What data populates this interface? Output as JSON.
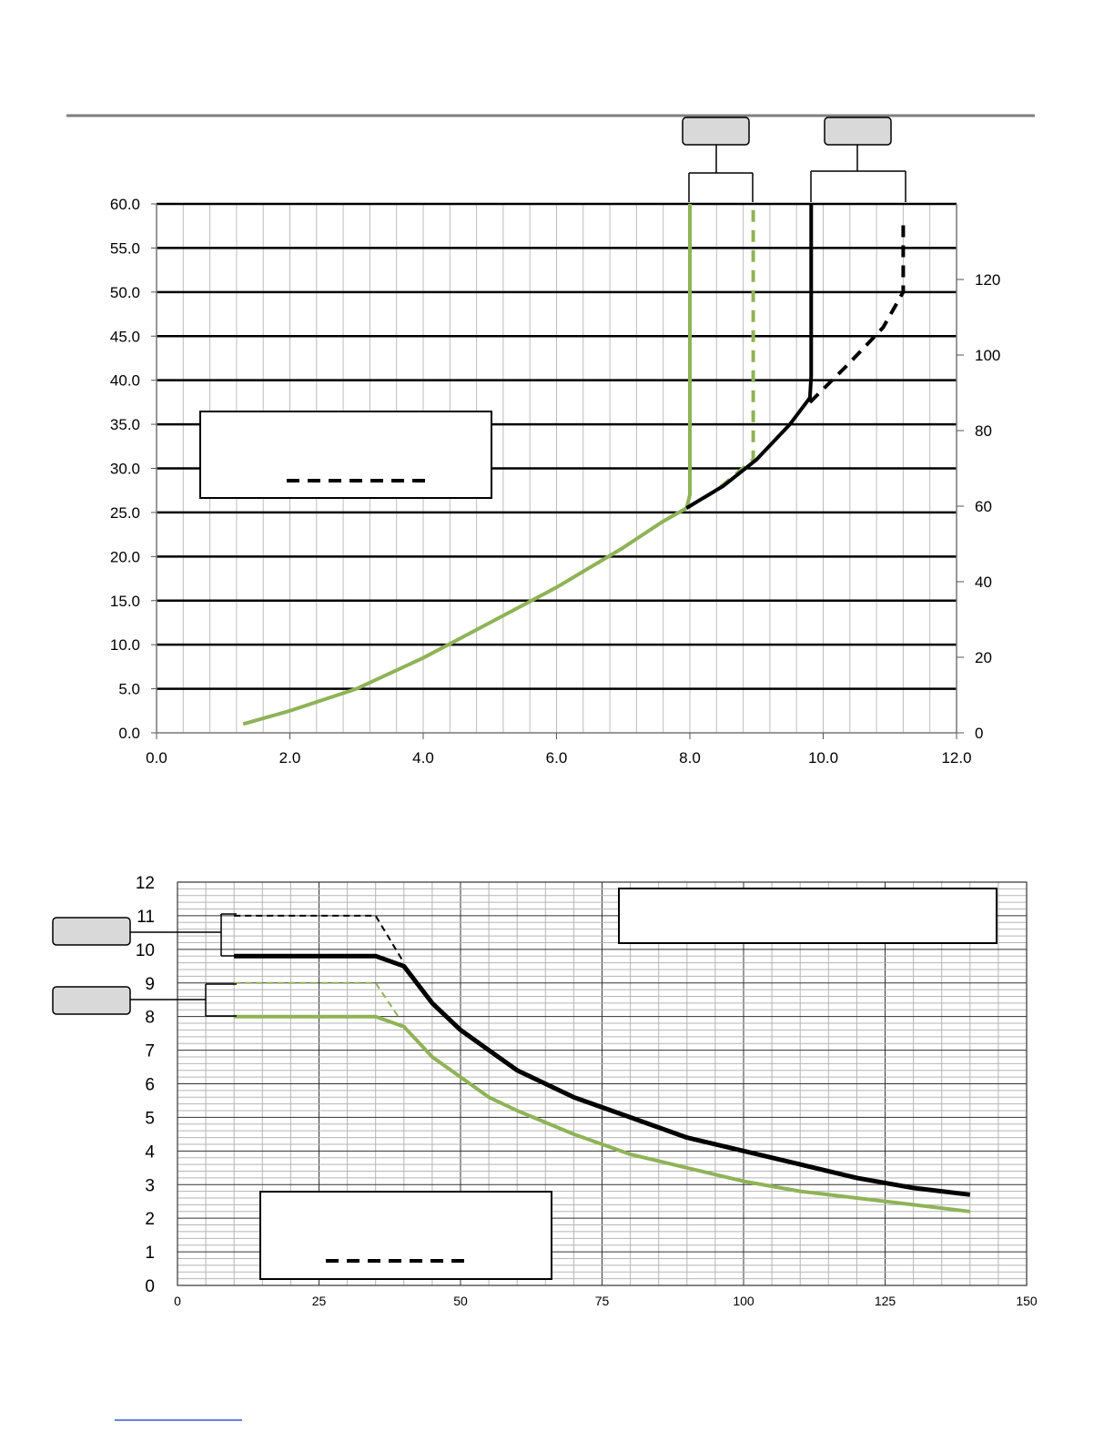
{
  "chart_data": [
    {
      "type": "line",
      "title": "",
      "xlabel": "",
      "ylabel": "",
      "xlim": [
        0,
        12
      ],
      "ylim": [
        0,
        60
      ],
      "y2lim": [
        0,
        140
      ],
      "xticks": [
        "0.0",
        "2.0",
        "4.0",
        "6.0",
        "8.0",
        "10.0",
        "12.0"
      ],
      "yticks": [
        "0.0",
        "5.0",
        "10.0",
        "15.0",
        "20.0",
        "25.0",
        "30.0",
        "35.0",
        "40.0",
        "45.0",
        "50.0",
        "55.0",
        "60.0"
      ],
      "y2ticks": [
        "0",
        "20",
        "40",
        "60",
        "80",
        "100",
        "120"
      ],
      "grid": true,
      "series": [
        {
          "color": "#8fb357",
          "style": "solid",
          "x": [
            1.3,
            2.0,
            3.0,
            4.0,
            5.0,
            6.0,
            7.0,
            7.6,
            7.95,
            8.0,
            8.0
          ],
          "y": [
            1.0,
            2.5,
            5.0,
            8.5,
            12.5,
            16.5,
            21.0,
            24.0,
            25.5,
            27.0,
            60.0
          ]
        },
        {
          "color": "#8fb357",
          "style": "dashed",
          "x": [
            7.95,
            8.4,
            8.95,
            8.95
          ],
          "y": [
            25.5,
            27.5,
            31.0,
            60.0
          ]
        },
        {
          "color": "#000000",
          "style": "solid",
          "x": [
            7.95,
            8.5,
            9.0,
            9.5,
            9.8,
            9.82,
            9.82
          ],
          "y": [
            25.5,
            28.0,
            31.0,
            35.0,
            38.0,
            40.5,
            60.0
          ]
        },
        {
          "color": "#000000",
          "style": "dashed",
          "x": [
            9.8,
            10.4,
            10.9,
            11.2,
            11.2
          ],
          "y": [
            37.5,
            42.0,
            46.0,
            50.0,
            58.0
          ]
        }
      ]
    },
    {
      "type": "line",
      "title": "",
      "xlabel": "",
      "ylabel": "",
      "xlim": [
        0,
        150
      ],
      "ylim": [
        0,
        12
      ],
      "xticks": [
        "0",
        "25",
        "50",
        "75",
        "100",
        "125",
        "150"
      ],
      "yticks": [
        "0",
        "1",
        "2",
        "3",
        "4",
        "5",
        "6",
        "7",
        "8",
        "9",
        "10",
        "11",
        "12"
      ],
      "grid": true,
      "series": [
        {
          "color": "#000000",
          "style": "solid",
          "x": [
            10,
            35,
            40,
            45,
            50,
            55,
            60,
            70,
            80,
            90,
            100,
            110,
            120,
            130,
            140
          ],
          "y": [
            9.8,
            9.8,
            9.5,
            8.4,
            7.6,
            7.0,
            6.4,
            5.6,
            5.0,
            4.4,
            4.0,
            3.6,
            3.2,
            2.9,
            2.7
          ]
        },
        {
          "color": "#000000",
          "style": "dashed",
          "x": [
            10,
            35,
            40
          ],
          "y": [
            11.0,
            11.0,
            9.6
          ]
        },
        {
          "color": "#8fb357",
          "style": "solid",
          "x": [
            10,
            35,
            40,
            45,
            50,
            55,
            60,
            70,
            80,
            90,
            100,
            110,
            120,
            130,
            140
          ],
          "y": [
            8.0,
            8.0,
            7.7,
            6.8,
            6.2,
            5.6,
            5.2,
            4.5,
            3.9,
            3.5,
            3.1,
            2.8,
            2.6,
            2.4,
            2.2
          ]
        },
        {
          "color": "#8fb357",
          "style": "dashed",
          "x": [
            10,
            35,
            39
          ],
          "y": [
            9.0,
            9.0,
            8.0
          ]
        }
      ]
    }
  ]
}
